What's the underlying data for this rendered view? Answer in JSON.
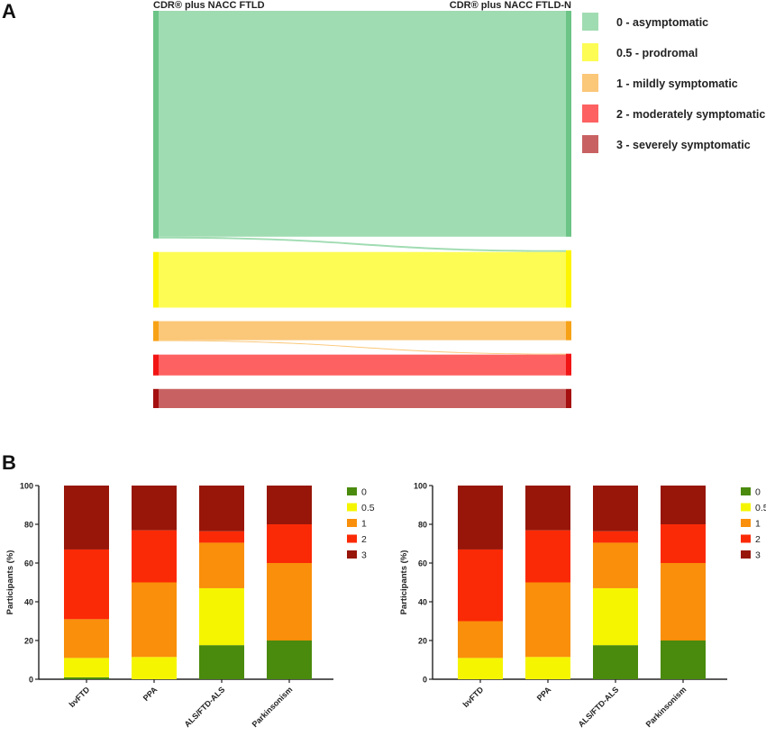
{
  "panel_a": {
    "label": "A",
    "left_header": "CDR® plus NACC FTLD",
    "right_header": "CDR® plus NACC FTLD-N",
    "legend": [
      {
        "label": "0 - asymptomatic",
        "color": "#a0dcb2"
      },
      {
        "label": "0.5 - prodromal",
        "color": "#fcfc55"
      },
      {
        "label": "1 - mildly symptomatic",
        "color": "#fbc778"
      },
      {
        "label": "2 - moderately symptomatic",
        "color": "#fd6161"
      },
      {
        "label": "3 - severely symptomatic",
        "color": "#c86262"
      }
    ]
  },
  "panel_b": {
    "label": "B"
  },
  "chart_data": [
    {
      "type": "sankey",
      "left_title": "CDR® plus NACC FTLD",
      "right_title": "CDR® plus NACC FTLD-N",
      "categories": [
        "0 - asymptomatic",
        "0.5 - prodromal",
        "1 - mildly symptomatic",
        "2 - moderately symptomatic",
        "3 - severely symptomatic"
      ],
      "node_colors": [
        "#6cc487",
        "#fdf400",
        "#f7a216",
        "#f21515",
        "#a50f0f"
      ],
      "link_colors": [
        "#a0dcb2",
        "#fcfc55",
        "#fbc778",
        "#fd6161",
        "#c86262"
      ],
      "flows": [
        {
          "from": "0 - asymptomatic",
          "to": "0 - asymptomatic",
          "value": 260
        },
        {
          "from": "0 - asymptomatic",
          "to": "0.5 - prodromal",
          "value": 2
        },
        {
          "from": "0.5 - prodromal",
          "to": "0.5 - prodromal",
          "value": 64
        },
        {
          "from": "1 - mildly symptomatic",
          "to": "1 - mildly symptomatic",
          "value": 22
        },
        {
          "from": "1 - mildly symptomatic",
          "to": "2 - moderately symptomatic",
          "value": 1
        },
        {
          "from": "2 - moderately symptomatic",
          "to": "2 - moderately symptomatic",
          "value": 24
        },
        {
          "from": "3 - severely symptomatic",
          "to": "3 - severely symptomatic",
          "value": 22
        }
      ]
    },
    {
      "type": "bar",
      "stacked": true,
      "categories": [
        "bvFTD",
        "PPA",
        "ALS/FTD-ALS",
        "Parkinsonism"
      ],
      "ylabel": "Participants (%)",
      "ylim": [
        0,
        100
      ],
      "yticks": [
        0,
        20,
        40,
        60,
        80,
        100
      ],
      "legend_position": "right",
      "series": [
        {
          "name": "0",
          "color": "#4a8a0c",
          "values": [
            1,
            0,
            17.6,
            20
          ]
        },
        {
          "name": "0.5",
          "color": "#f5f500",
          "values": [
            10,
            11.5,
            29.4,
            0
          ]
        },
        {
          "name": "1",
          "color": "#f98f0a",
          "values": [
            20,
            38.5,
            23.5,
            40
          ]
        },
        {
          "name": "2",
          "color": "#fb2a06",
          "values": [
            36,
            26.9,
            5.9,
            20
          ]
        },
        {
          "name": "3",
          "color": "#971609",
          "values": [
            33,
            23.1,
            23.6,
            20
          ]
        }
      ]
    },
    {
      "type": "bar",
      "stacked": true,
      "categories": [
        "bvFTD",
        "PPA",
        "ALS/FTD-ALS",
        "Parkinsonism"
      ],
      "ylabel": "Participants (%)",
      "ylim": [
        0,
        100
      ],
      "yticks": [
        0,
        20,
        40,
        60,
        80,
        100
      ],
      "legend_position": "right",
      "series": [
        {
          "name": "0",
          "color": "#4a8a0c",
          "values": [
            0,
            0,
            17.6,
            20
          ]
        },
        {
          "name": "0.5",
          "color": "#f5f500",
          "values": [
            11,
            11.5,
            29.4,
            0
          ]
        },
        {
          "name": "1",
          "color": "#f98f0a",
          "values": [
            19,
            38.5,
            23.5,
            40
          ]
        },
        {
          "name": "2",
          "color": "#fb2a06",
          "values": [
            37,
            26.9,
            5.9,
            20
          ]
        },
        {
          "name": "3",
          "color": "#971609",
          "values": [
            33,
            23.1,
            23.6,
            20
          ]
        }
      ]
    }
  ]
}
